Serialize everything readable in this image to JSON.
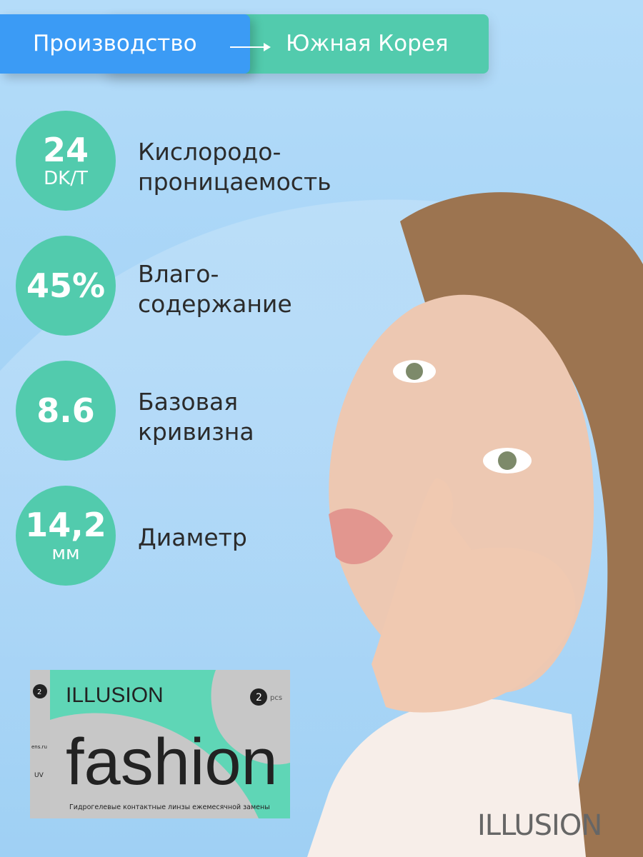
{
  "origin": {
    "label": "Производство",
    "country": "Южная Корея"
  },
  "specs": [
    {
      "value": "24",
      "unit": "DK/T",
      "label1": "Кислородо-",
      "label2": "проницаемость"
    },
    {
      "value": "45%",
      "label1": "Влаго-",
      "label2": "содержание"
    },
    {
      "value": "8.6",
      "label1": "Базовая",
      "label2": "кривизна"
    },
    {
      "value": "14,2",
      "unit": "мм",
      "label1": "Диаметр"
    }
  ],
  "product_box": {
    "brand": "ILLUSION",
    "name": "fashion",
    "count": "2",
    "count_unit": "pcs",
    "description": "Гидрогелевые контактные линзы ежемесячной замены",
    "side_site": "ens.ru",
    "side_uv": "UV"
  },
  "logo": "ILLUSION",
  "colors": {
    "accent_blue": "#3b9bf5",
    "accent_green": "#52cbad"
  }
}
